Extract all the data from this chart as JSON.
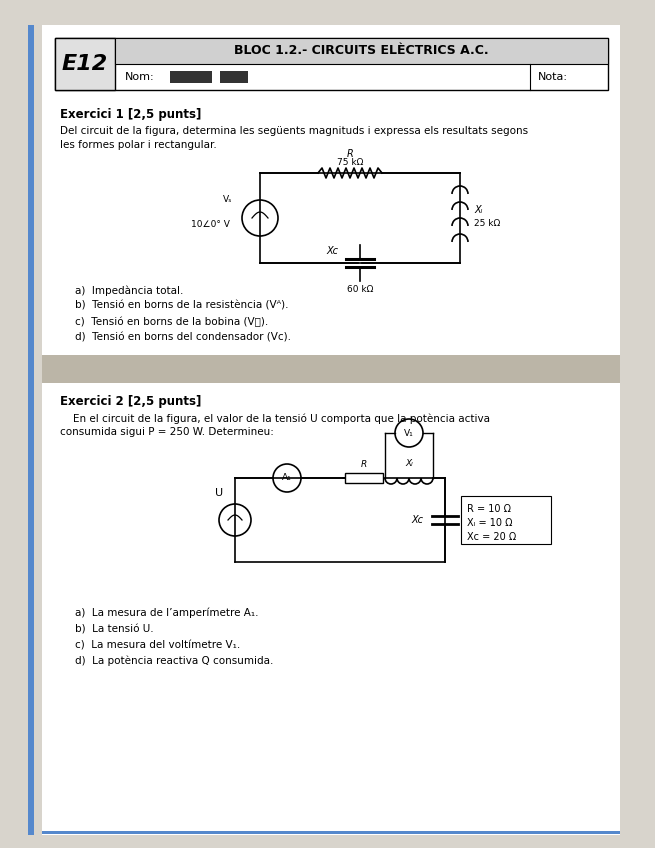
{
  "page_bg": "#d8d4cc",
  "content_bg": "#ffffff",
  "header_title": "BLOC 1.2.- CIRCUITS ELÈCTRICS A.C.",
  "header_code": "E12",
  "header_nom_label": "Nom:",
  "header_nota_label": "Nota:",
  "ex1_title": "Exercici 1 [2,5 punts]",
  "ex1_desc1": "Del circuit de la figura, determina les següents magnituds i expressa els resultats segons",
  "ex1_desc2": "les formes polar i rectangular.",
  "ex1_items": [
    "a)  Impedància total.",
    "b)  Tensió en borns de la resistència (Vᴬ).",
    "c)  Tensió en borns de la bobina (Vⲟ).",
    "d)  Tensió en borns del condensador (Vᴄ)."
  ],
  "ex2_title": "Exercici 2 [2,5 punts]",
  "ex2_desc1": "    En el circuit de la figura, el valor de la tensió U comporta que la potència activa",
  "ex2_desc2": "consumida sigui P = 250 W. Determineu:",
  "ex2_items": [
    "a)  La mesura de l’amperímetre A₁.",
    "b)  La tensió U.",
    "c)  La mesura del voltímetre V₁.",
    "d)  La potència reactiva Q consumida."
  ],
  "circuit1_R": "R",
  "circuit1_R_val": "75 kΩ",
  "circuit1_XL_label": "Xₗ",
  "circuit1_XL_val": "25 kΩ",
  "circuit1_XC_label": "Xᴄ",
  "circuit1_XC_val": "60 kΩ",
  "circuit1_vs": "Vₛ",
  "circuit1_vs_val": "10∠0° V",
  "circuit2_R_val": "R = 10 Ω",
  "circuit2_XL_val": "Xₗ = 10 Ω",
  "circuit2_XC_val": "Xᴄ = 20 Ω",
  "blue_bar_color": "#5588cc",
  "sep_color": "#b0a898"
}
